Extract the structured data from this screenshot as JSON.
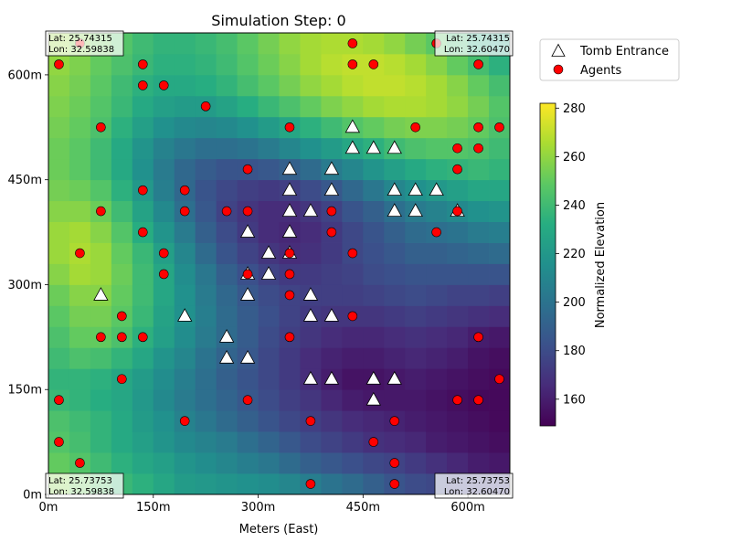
{
  "chart_data": {
    "type": "heatmap",
    "title": "Simulation Step: 0",
    "xlabel": "Meters (East)",
    "ylabel": "",
    "xlim": [
      0,
      660
    ],
    "ylim": [
      0,
      660
    ],
    "x_ticks": [
      {
        "value": 0,
        "label": "0m"
      },
      {
        "value": 150,
        "label": "150m"
      },
      {
        "value": 300,
        "label": "300m"
      },
      {
        "value": 450,
        "label": "450m"
      },
      {
        "value": 600,
        "label": "600m"
      }
    ],
    "y_ticks": [
      {
        "value": 0,
        "label": "0m"
      },
      {
        "value": 150,
        "label": "150m"
      },
      {
        "value": 300,
        "label": "300m"
      },
      {
        "value": 450,
        "label": "450m"
      },
      {
        "value": 600,
        "label": "600m"
      }
    ],
    "legend": {
      "placement": "upper-right-outside",
      "entries": [
        {
          "name": "Tomb Entrance",
          "marker": "triangle"
        },
        {
          "name": "Agents",
          "marker": "circle"
        }
      ]
    },
    "colorbar": {
      "label": "Normalized Elevation",
      "range": [
        149,
        282
      ],
      "ticks": [
        160,
        180,
        200,
        220,
        240,
        260,
        280
      ],
      "colormap": "viridis"
    },
    "corner_labels": [
      {
        "corner": "top-left",
        "lat": "Lat: 25.74315",
        "lon": "Lon: 32.59838"
      },
      {
        "corner": "top-right",
        "lat": "Lat: 25.74315",
        "lon": "Lon: 32.60470"
      },
      {
        "corner": "bottom-left",
        "lat": "Lat: 25.73753",
        "lon": "Lon: 32.59838"
      },
      {
        "corner": "bottom-right",
        "lat": "Lat: 25.73753",
        "lon": "Lon: 32.60470"
      }
    ],
    "grid": {
      "rows": 22,
      "cols": 22,
      "cell_size_m": 30,
      "elevation": [
        [
          258,
          252,
          246,
          238,
          234,
          228,
          222,
          220,
          218,
          216,
          214,
          210,
          206,
          200,
          196,
          190,
          184,
          180,
          178,
          176,
          174,
          172
        ],
        [
          250,
          246,
          240,
          234,
          228,
          224,
          218,
          214,
          210,
          206,
          202,
          196,
          190,
          186,
          182,
          178,
          176,
          172,
          168,
          164,
          160,
          158
        ],
        [
          246,
          242,
          236,
          230,
          224,
          218,
          212,
          208,
          204,
          198,
          192,
          186,
          180,
          176,
          172,
          168,
          166,
          164,
          160,
          158,
          156,
          154
        ],
        [
          244,
          240,
          236,
          230,
          222,
          216,
          208,
          202,
          196,
          190,
          184,
          178,
          174,
          170,
          166,
          164,
          162,
          160,
          158,
          156,
          154,
          152
        ],
        [
          238,
          236,
          232,
          228,
          220,
          212,
          204,
          198,
          192,
          186,
          180,
          174,
          170,
          164,
          160,
          158,
          158,
          158,
          156,
          154,
          152,
          152
        ],
        [
          236,
          236,
          234,
          228,
          222,
          214,
          206,
          198,
          190,
          184,
          178,
          172,
          166,
          160,
          156,
          156,
          158,
          160,
          158,
          156,
          154,
          152
        ],
        [
          240,
          244,
          242,
          236,
          228,
          218,
          210,
          200,
          192,
          186,
          178,
          172,
          166,
          162,
          160,
          160,
          162,
          164,
          162,
          160,
          156,
          154
        ],
        [
          244,
          250,
          250,
          244,
          234,
          224,
          214,
          204,
          196,
          188,
          180,
          174,
          170,
          166,
          164,
          164,
          166,
          168,
          166,
          164,
          160,
          158
        ],
        [
          248,
          254,
          254,
          248,
          238,
          226,
          216,
          206,
          196,
          188,
          182,
          176,
          172,
          170,
          170,
          170,
          172,
          174,
          172,
          170,
          168,
          166
        ],
        [
          252,
          258,
          258,
          250,
          240,
          228,
          216,
          204,
          194,
          186,
          180,
          176,
          174,
          174,
          174,
          176,
          178,
          180,
          178,
          176,
          176,
          174
        ],
        [
          258,
          264,
          262,
          252,
          240,
          228,
          214,
          202,
          190,
          182,
          176,
          172,
          172,
          174,
          176,
          180,
          182,
          184,
          184,
          184,
          184,
          184
        ],
        [
          262,
          266,
          262,
          250,
          238,
          224,
          210,
          196,
          184,
          176,
          170,
          166,
          168,
          172,
          178,
          182,
          186,
          190,
          190,
          192,
          194,
          196
        ],
        [
          262,
          264,
          258,
          246,
          232,
          218,
          204,
          190,
          180,
          172,
          166,
          164,
          166,
          172,
          178,
          184,
          190,
          196,
          198,
          200,
          204,
          206
        ],
        [
          258,
          258,
          252,
          240,
          226,
          212,
          198,
          186,
          176,
          170,
          166,
          166,
          170,
          176,
          184,
          190,
          198,
          204,
          208,
          212,
          216,
          218
        ],
        [
          254,
          252,
          246,
          234,
          220,
          206,
          194,
          184,
          178,
          174,
          172,
          174,
          180,
          186,
          194,
          202,
          210,
          216,
          220,
          224,
          228,
          228
        ],
        [
          252,
          248,
          240,
          230,
          216,
          204,
          194,
          188,
          184,
          184,
          186,
          190,
          196,
          204,
          210,
          218,
          224,
          230,
          234,
          236,
          238,
          236
        ],
        [
          252,
          248,
          240,
          230,
          218,
          208,
          202,
          198,
          198,
          200,
          204,
          210,
          216,
          222,
          228,
          234,
          240,
          244,
          246,
          246,
          244,
          240
        ],
        [
          254,
          250,
          244,
          234,
          224,
          216,
          212,
          210,
          212,
          216,
          222,
          228,
          234,
          240,
          246,
          250,
          254,
          256,
          256,
          254,
          250,
          244
        ],
        [
          256,
          252,
          246,
          238,
          230,
          224,
          222,
          222,
          226,
          232,
          238,
          244,
          250,
          256,
          260,
          264,
          266,
          266,
          264,
          260,
          254,
          246
        ],
        [
          258,
          254,
          248,
          240,
          234,
          230,
          230,
          232,
          236,
          242,
          248,
          254,
          260,
          264,
          268,
          270,
          270,
          268,
          264,
          258,
          250,
          242
        ],
        [
          260,
          256,
          250,
          244,
          238,
          234,
          234,
          236,
          240,
          246,
          252,
          258,
          264,
          268,
          270,
          270,
          268,
          264,
          258,
          250,
          242,
          234
        ],
        [
          262,
          258,
          252,
          246,
          240,
          236,
          236,
          238,
          242,
          248,
          254,
          260,
          264,
          266,
          266,
          264,
          260,
          254,
          248,
          240,
          232,
          226
        ]
      ]
    },
    "tomb_entrances": [
      [
        435,
        525
      ],
      [
        435,
        495
      ],
      [
        465,
        495
      ],
      [
        495,
        495
      ],
      [
        345,
        465
      ],
      [
        405,
        465
      ],
      [
        345,
        435
      ],
      [
        405,
        435
      ],
      [
        495,
        435
      ],
      [
        525,
        435
      ],
      [
        555,
        435
      ],
      [
        345,
        405
      ],
      [
        375,
        405
      ],
      [
        495,
        405
      ],
      [
        525,
        405
      ],
      [
        585,
        405
      ],
      [
        285,
        375
      ],
      [
        345,
        375
      ],
      [
        315,
        345
      ],
      [
        345,
        345
      ],
      [
        285,
        315
      ],
      [
        315,
        315
      ],
      [
        75,
        285
      ],
      [
        285,
        285
      ],
      [
        375,
        285
      ],
      [
        195,
        255
      ],
      [
        375,
        255
      ],
      [
        405,
        255
      ],
      [
        255,
        225
      ],
      [
        255,
        195
      ],
      [
        285,
        195
      ],
      [
        375,
        165
      ],
      [
        405,
        165
      ],
      [
        465,
        165
      ],
      [
        495,
        165
      ],
      [
        465,
        135
      ]
    ],
    "agents": [
      [
        45,
        645
      ],
      [
        435,
        645
      ],
      [
        555,
        645
      ],
      [
        15,
        615
      ],
      [
        135,
        615
      ],
      [
        435,
        615
      ],
      [
        465,
        615
      ],
      [
        615,
        615
      ],
      [
        135,
        585
      ],
      [
        165,
        585
      ],
      [
        225,
        555
      ],
      [
        75,
        525
      ],
      [
        345,
        525
      ],
      [
        525,
        525
      ],
      [
        615,
        525
      ],
      [
        645,
        525
      ],
      [
        585,
        495
      ],
      [
        615,
        495
      ],
      [
        285,
        465
      ],
      [
        585,
        465
      ],
      [
        135,
        435
      ],
      [
        195,
        435
      ],
      [
        75,
        405
      ],
      [
        195,
        405
      ],
      [
        255,
        405
      ],
      [
        285,
        405
      ],
      [
        405,
        405
      ],
      [
        585,
        405
      ],
      [
        135,
        375
      ],
      [
        405,
        375
      ],
      [
        555,
        375
      ],
      [
        45,
        345
      ],
      [
        165,
        345
      ],
      [
        345,
        345
      ],
      [
        435,
        345
      ],
      [
        165,
        315
      ],
      [
        285,
        315
      ],
      [
        345,
        315
      ],
      [
        345,
        285
      ],
      [
        105,
        255
      ],
      [
        435,
        255
      ],
      [
        75,
        225
      ],
      [
        105,
        225
      ],
      [
        135,
        225
      ],
      [
        345,
        225
      ],
      [
        615,
        225
      ],
      [
        105,
        165
      ],
      [
        645,
        165
      ],
      [
        15,
        135
      ],
      [
        285,
        135
      ],
      [
        585,
        135
      ],
      [
        615,
        135
      ],
      [
        195,
        105
      ],
      [
        375,
        105
      ],
      [
        495,
        105
      ],
      [
        15,
        75
      ],
      [
        465,
        75
      ],
      [
        45,
        45
      ],
      [
        495,
        45
      ],
      [
        375,
        15
      ],
      [
        495,
        15
      ]
    ]
  }
}
